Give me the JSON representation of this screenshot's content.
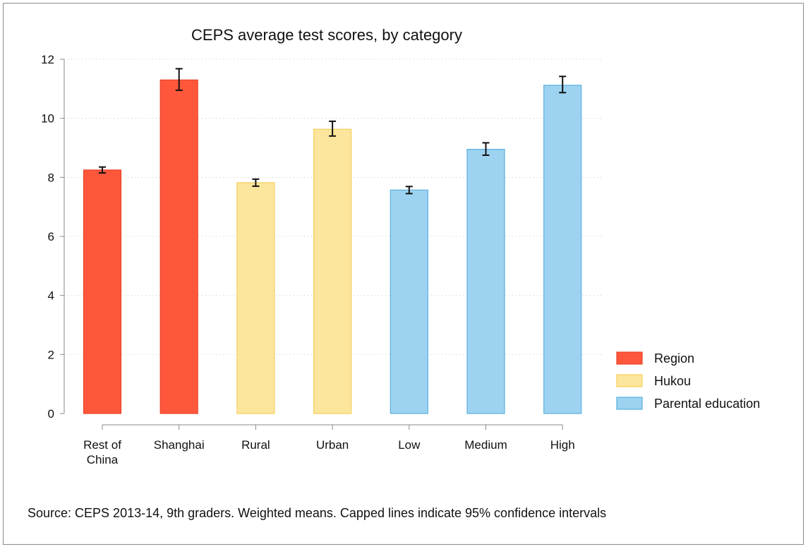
{
  "chart_data": {
    "type": "bar",
    "title": "CEPS average test scores, by category",
    "xlabel": "",
    "ylabel": "",
    "ylim": [
      0,
      12
    ],
    "yticks": [
      0,
      2,
      4,
      6,
      8,
      10,
      12
    ],
    "grid": true,
    "categories": [
      {
        "lines": [
          "Rest of",
          "China"
        ]
      },
      {
        "lines": [
          "Shanghai"
        ]
      },
      {
        "lines": [
          "Rural"
        ]
      },
      {
        "lines": [
          "Urban"
        ]
      },
      {
        "lines": [
          "Low"
        ]
      },
      {
        "lines": [
          "Medium"
        ]
      },
      {
        "lines": [
          "High"
        ]
      }
    ],
    "bars": [
      {
        "value": 8.25,
        "ci": [
          8.15,
          8.35
        ],
        "group": 0
      },
      {
        "value": 11.3,
        "ci": [
          10.95,
          11.68
        ],
        "group": 0
      },
      {
        "value": 7.82,
        "ci": [
          7.7,
          7.94
        ],
        "group": 1
      },
      {
        "value": 9.63,
        "ci": [
          9.4,
          9.9
        ],
        "group": 1
      },
      {
        "value": 7.57,
        "ci": [
          7.45,
          7.69
        ],
        "group": 2
      },
      {
        "value": 8.95,
        "ci": [
          8.75,
          9.17
        ],
        "group": 2
      },
      {
        "value": 11.12,
        "ci": [
          10.87,
          11.42
        ],
        "group": 2
      }
    ],
    "legend": {
      "placement": "right",
      "entries": [
        {
          "name": "Region",
          "fill": "#fe573b",
          "stroke": "#e8452c"
        },
        {
          "name": "Hukou",
          "fill": "#fce59c",
          "stroke": "#f5cf5c"
        },
        {
          "name": "Parental education",
          "fill": "#9dd3f0",
          "stroke": "#5aafe0"
        }
      ]
    },
    "note": "Source: CEPS 2013-14, 9th graders. Weighted means. Capped lines indicate 95% confidence intervals"
  }
}
